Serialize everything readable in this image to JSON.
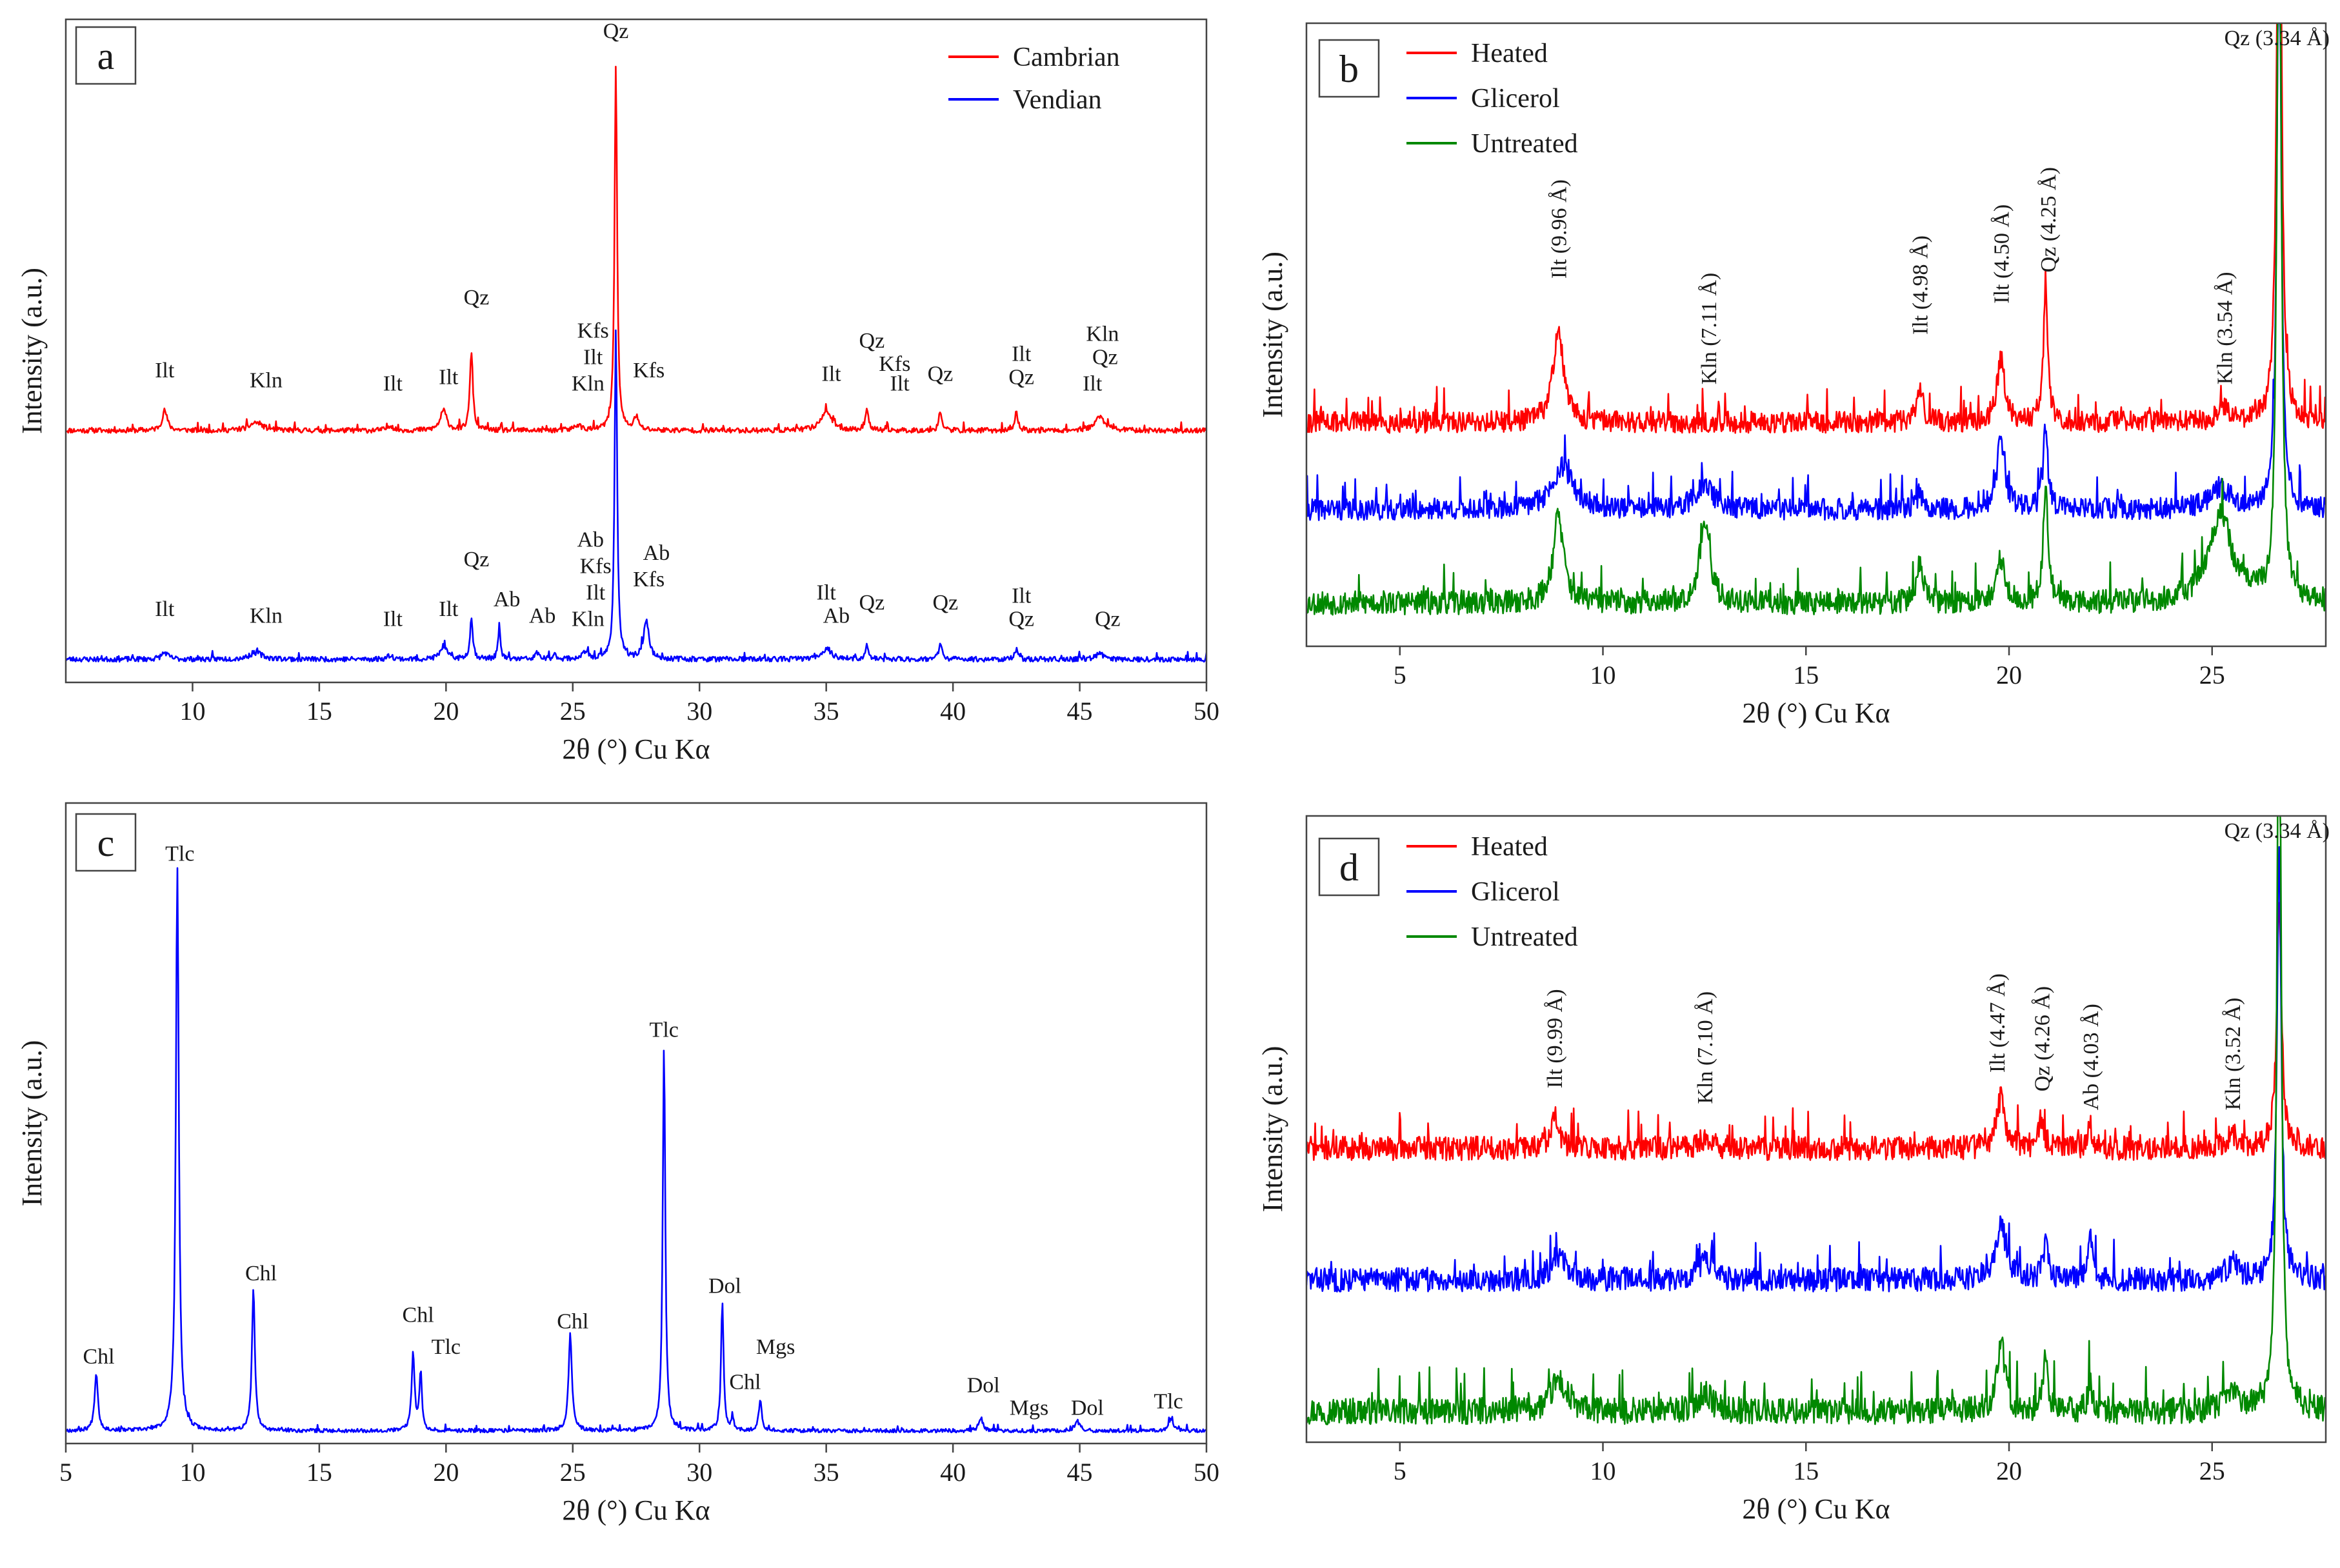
{
  "figure": {
    "panels": [
      "a",
      "b",
      "c",
      "d"
    ]
  },
  "chart_data": [
    {
      "id": "a",
      "type": "line",
      "label": "a",
      "xlabel": "2θ (°) Cu Kα",
      "ylabel": "Intensity (a.u.)",
      "xlim": [
        5,
        50
      ],
      "xticks": [
        10,
        15,
        20,
        25,
        30,
        35,
        40,
        45,
        50
      ],
      "legend_position": "top-right",
      "series": [
        {
          "name": "Cambrian",
          "color": "#ff0000",
          "baseline": 0.38,
          "noise": 0.004,
          "seed": 11,
          "peaks": [
            [
              8.9,
              0.03,
              0.12
            ],
            [
              12.5,
              0.012,
              0.3
            ],
            [
              17.8,
              0.008,
              0.12
            ],
            [
              19.9,
              0.03,
              0.15
            ],
            [
              21.0,
              0.12,
              0.07
            ],
            [
              25.2,
              0.008,
              0.15
            ],
            [
              26.7,
              0.55,
              0.06
            ],
            [
              27.5,
              0.02,
              0.1
            ],
            [
              35.0,
              0.03,
              0.25
            ],
            [
              36.6,
              0.035,
              0.07
            ],
            [
              39.5,
              0.03,
              0.07
            ],
            [
              42.5,
              0.028,
              0.07
            ],
            [
              45.8,
              0.02,
              0.25
            ]
          ]
        },
        {
          "name": "Vendian",
          "color": "#0000ff",
          "baseline": 0.035,
          "noise": 0.004,
          "seed": 23,
          "peaks": [
            [
              8.9,
              0.01,
              0.15
            ],
            [
              12.5,
              0.01,
              0.3
            ],
            [
              17.8,
              0.006,
              0.12
            ],
            [
              19.9,
              0.02,
              0.15
            ],
            [
              21.0,
              0.06,
              0.07
            ],
            [
              22.1,
              0.045,
              0.06
            ],
            [
              23.6,
              0.01,
              0.08
            ],
            [
              24.3,
              0.006,
              0.1
            ],
            [
              25.5,
              0.01,
              0.15
            ],
            [
              26.7,
              0.5,
              0.06
            ],
            [
              27.9,
              0.06,
              0.12
            ],
            [
              35.0,
              0.015,
              0.25
            ],
            [
              36.6,
              0.02,
              0.07
            ],
            [
              39.5,
              0.025,
              0.07
            ],
            [
              42.5,
              0.015,
              0.07
            ],
            [
              45.8,
              0.008,
              0.2
            ]
          ]
        }
      ],
      "annotations": [
        {
          "text": "Qz",
          "x": 26.7,
          "y": 0.972
        },
        {
          "text": "Ilt",
          "x": 8.9,
          "y": 0.46
        },
        {
          "text": "Kln",
          "x": 12.9,
          "y": 0.445
        },
        {
          "text": "Ilt",
          "x": 17.9,
          "y": 0.44
        },
        {
          "text": "Ilt",
          "x": 20.1,
          "y": 0.45
        },
        {
          "text": "Qz",
          "x": 21.2,
          "y": 0.57
        },
        {
          "text": "Kfs",
          "x": 25.8,
          "y": 0.52
        },
        {
          "text": "Ilt",
          "x": 25.8,
          "y": 0.48
        },
        {
          "text": "Kln",
          "x": 25.6,
          "y": 0.44
        },
        {
          "text": "Kfs",
          "x": 28.0,
          "y": 0.46
        },
        {
          "text": "Ilt",
          "x": 35.2,
          "y": 0.455
        },
        {
          "text": "Qz",
          "x": 36.8,
          "y": 0.505
        },
        {
          "text": "Kfs",
          "x": 37.7,
          "y": 0.47
        },
        {
          "text": "Ilt",
          "x": 37.9,
          "y": 0.44
        },
        {
          "text": "Qz",
          "x": 39.5,
          "y": 0.455
        },
        {
          "text": "Ilt",
          "x": 42.7,
          "y": 0.485
        },
        {
          "text": "Qz",
          "x": 42.7,
          "y": 0.45
        },
        {
          "text": "Kln",
          "x": 45.9,
          "y": 0.515
        },
        {
          "text": "Qz",
          "x": 46.0,
          "y": 0.48
        },
        {
          "text": "Ilt",
          "x": 45.5,
          "y": 0.44
        },
        {
          "text": "Ilt",
          "x": 8.9,
          "y": 0.1
        },
        {
          "text": "Kln",
          "x": 12.9,
          "y": 0.09
        },
        {
          "text": "Ilt",
          "x": 17.9,
          "y": 0.085
        },
        {
          "text": "Ilt",
          "x": 20.1,
          "y": 0.1
        },
        {
          "text": "Qz",
          "x": 21.2,
          "y": 0.175
        },
        {
          "text": "Ab",
          "x": 22.4,
          "y": 0.115
        },
        {
          "text": "Ab",
          "x": 23.8,
          "y": 0.09
        },
        {
          "text": "Ab",
          "x": 25.7,
          "y": 0.205
        },
        {
          "text": "Kfs",
          "x": 25.9,
          "y": 0.165
        },
        {
          "text": "Ilt",
          "x": 25.9,
          "y": 0.125
        },
        {
          "text": "Kln",
          "x": 25.6,
          "y": 0.085
        },
        {
          "text": "Ab",
          "x": 28.3,
          "y": 0.185
        },
        {
          "text": "Kfs",
          "x": 28.0,
          "y": 0.145
        },
        {
          "text": "Ilt",
          "x": 35.0,
          "y": 0.125
        },
        {
          "text": "Ab",
          "x": 35.4,
          "y": 0.09
        },
        {
          "text": "Qz",
          "x": 36.8,
          "y": 0.11
        },
        {
          "text": "Qz",
          "x": 39.7,
          "y": 0.11
        },
        {
          "text": "Ilt",
          "x": 42.7,
          "y": 0.12
        },
        {
          "text": "Qz",
          "x": 42.7,
          "y": 0.085
        },
        {
          "text": "Qz",
          "x": 46.1,
          "y": 0.085
        }
      ]
    },
    {
      "id": "b",
      "type": "line",
      "label": "b",
      "xlabel": "2θ (°) Cu Kα",
      "ylabel": "Intensity (a.u.)",
      "xlim": [
        2.7,
        27.8
      ],
      "xticks": [
        5,
        10,
        15,
        20,
        25
      ],
      "legend_position": "top-left",
      "series": [
        {
          "name": "Heated",
          "color": "#ff0000",
          "baseline": 0.36,
          "noise": 0.018,
          "seed": 31,
          "peaks": [
            [
              8.9,
              0.15,
              0.15
            ],
            [
              17.8,
              0.05,
              0.1
            ],
            [
              19.8,
              0.1,
              0.12
            ],
            [
              20.9,
              0.2,
              0.07
            ],
            [
              25.3,
              0.02,
              0.2
            ],
            [
              26.65,
              1.25,
              0.06
            ]
          ]
        },
        {
          "name": "Glicerol",
          "color": "#0000ff",
          "baseline": 0.22,
          "noise": 0.018,
          "seed": 41,
          "peaks": [
            [
              9.0,
              0.07,
              0.3
            ],
            [
              12.5,
              0.04,
              0.25
            ],
            [
              17.8,
              0.025,
              0.1
            ],
            [
              19.8,
              0.11,
              0.12
            ],
            [
              20.9,
              0.13,
              0.07
            ],
            [
              25.2,
              0.035,
              0.3
            ],
            [
              26.65,
              1.0,
              0.06
            ]
          ]
        },
        {
          "name": "Untreated",
          "color": "#008800",
          "baseline": 0.07,
          "noise": 0.02,
          "seed": 53,
          "peaks": [
            [
              8.9,
              0.14,
              0.15
            ],
            [
              12.5,
              0.13,
              0.15
            ],
            [
              17.8,
              0.06,
              0.1
            ],
            [
              19.8,
              0.07,
              0.12
            ],
            [
              20.9,
              0.19,
              0.07
            ],
            [
              25.2,
              0.14,
              0.35
            ],
            [
              26.65,
              1.3,
              0.06
            ]
          ]
        }
      ],
      "peak_labels": [
        {
          "text": "Ilt (9.96 Å)",
          "x": 8.9,
          "y": 0.59
        },
        {
          "text": "Kln (7.11 Å)",
          "x": 12.6,
          "y": 0.42
        },
        {
          "text": "Ilt (4.98 Å)",
          "x": 17.8,
          "y": 0.5
        },
        {
          "text": "Ilt (4.50 Å)",
          "x": 19.8,
          "y": 0.55
        },
        {
          "text": "Qz (4.25 Å)",
          "x": 20.95,
          "y": 0.6
        },
        {
          "text": "Kln (3.54 Å)",
          "x": 25.3,
          "y": 0.42
        }
      ],
      "top_label": {
        "text": "Qz (3.34 Å)",
        "x": 25.3,
        "y": 0.965
      }
    },
    {
      "id": "c",
      "type": "line",
      "label": "c",
      "xlabel": "2θ (°) Cu Kα",
      "ylabel": "Intensity (a.u.)",
      "xlim": [
        5,
        50
      ],
      "xticks": [
        5,
        10,
        15,
        20,
        25,
        30,
        35,
        40,
        45,
        50
      ],
      "series": [
        {
          "name": "",
          "color": "#0000ff",
          "baseline": 0.02,
          "noise": 0.003,
          "seed": 67,
          "peaks": [
            [
              6.2,
              0.09,
              0.08
            ],
            [
              9.4,
              0.88,
              0.07
            ],
            [
              12.4,
              0.22,
              0.07
            ],
            [
              18.7,
              0.12,
              0.07
            ],
            [
              19.0,
              0.09,
              0.06
            ],
            [
              24.9,
              0.15,
              0.08
            ],
            [
              28.6,
              0.6,
              0.06
            ],
            [
              30.9,
              0.2,
              0.06
            ],
            [
              31.3,
              0.02,
              0.06
            ],
            [
              32.4,
              0.05,
              0.07
            ],
            [
              41.1,
              0.02,
              0.1
            ],
            [
              44.9,
              0.015,
              0.12
            ],
            [
              48.6,
              0.02,
              0.1
            ]
          ]
        }
      ],
      "annotations": [
        {
          "text": "Chl",
          "x": 6.3,
          "y": 0.125
        },
        {
          "text": "Tlc",
          "x": 9.5,
          "y": 0.91
        },
        {
          "text": "Chl",
          "x": 12.7,
          "y": 0.255
        },
        {
          "text": "Chl",
          "x": 18.9,
          "y": 0.19
        },
        {
          "text": "Tlc",
          "x": 20.0,
          "y": 0.14
        },
        {
          "text": "Chl",
          "x": 25.0,
          "y": 0.18
        },
        {
          "text": "Tlc",
          "x": 28.6,
          "y": 0.635
        },
        {
          "text": "Dol",
          "x": 31.0,
          "y": 0.235
        },
        {
          "text": "Mgs",
          "x": 33.0,
          "y": 0.14
        },
        {
          "text": "Chl",
          "x": 31.8,
          "y": 0.085
        },
        {
          "text": "Dol",
          "x": 41.2,
          "y": 0.08
        },
        {
          "text": "Mgs",
          "x": 43.0,
          "y": 0.045
        },
        {
          "text": "Dol",
          "x": 45.3,
          "y": 0.045
        },
        {
          "text": "Tlc",
          "x": 48.5,
          "y": 0.055
        }
      ]
    },
    {
      "id": "d",
      "type": "line",
      "label": "d",
      "xlabel": "2θ (°) Cu Kα",
      "ylabel": "Intensity (a.u.)",
      "xlim": [
        2.7,
        27.8
      ],
      "xticks": [
        5,
        10,
        15,
        20,
        25
      ],
      "legend_position": "top-left",
      "series": [
        {
          "name": "Heated",
          "color": "#ff0000",
          "baseline": 0.47,
          "noise": 0.02,
          "seed": 71,
          "peaks": [
            [
              8.8,
              0.05,
              0.12
            ],
            [
              12.5,
              0.015,
              0.2
            ],
            [
              19.8,
              0.08,
              0.12
            ],
            [
              20.8,
              0.05,
              0.07
            ],
            [
              22.0,
              0.04,
              0.06
            ],
            [
              25.5,
              0.02,
              0.2
            ],
            [
              26.65,
              0.4,
              0.07
            ]
          ]
        },
        {
          "name": "Glicerol",
          "color": "#0000ff",
          "baseline": 0.26,
          "noise": 0.02,
          "seed": 83,
          "peaks": [
            [
              8.9,
              0.04,
              0.2
            ],
            [
              12.5,
              0.03,
              0.2
            ],
            [
              19.8,
              0.09,
              0.15
            ],
            [
              20.9,
              0.06,
              0.07
            ],
            [
              22.0,
              0.07,
              0.06
            ],
            [
              25.5,
              0.025,
              0.2
            ],
            [
              26.65,
              0.7,
              0.06
            ]
          ]
        },
        {
          "name": "Untreated",
          "color": "#008800",
          "baseline": 0.05,
          "noise": 0.022,
          "seed": 97,
          "peaks": [
            [
              8.9,
              0.05,
              0.2
            ],
            [
              12.5,
              0.03,
              0.2
            ],
            [
              19.8,
              0.11,
              0.12
            ],
            [
              20.9,
              0.09,
              0.07
            ],
            [
              22.0,
              0.05,
              0.06
            ],
            [
              25.5,
              0.03,
              0.2
            ],
            [
              26.65,
              1.3,
              0.06
            ]
          ]
        }
      ],
      "peak_labels": [
        {
          "text": "Ilt (9.99 Å)",
          "x": 8.8,
          "y": 0.565
        },
        {
          "text": "Kln (7.10 Å)",
          "x": 12.5,
          "y": 0.54
        },
        {
          "text": "Ilt (4.47 Å)",
          "x": 19.7,
          "y": 0.59
        },
        {
          "text": "Qz (4.26 Å)",
          "x": 20.8,
          "y": 0.56
        },
        {
          "text": "Ab (4.03 Å)",
          "x": 22.0,
          "y": 0.53
        },
        {
          "text": "Kln (3.52 Å)",
          "x": 25.5,
          "y": 0.53
        }
      ],
      "top_label": {
        "text": "Qz (3.34 Å)",
        "x": 25.3,
        "y": 0.965
      }
    }
  ]
}
